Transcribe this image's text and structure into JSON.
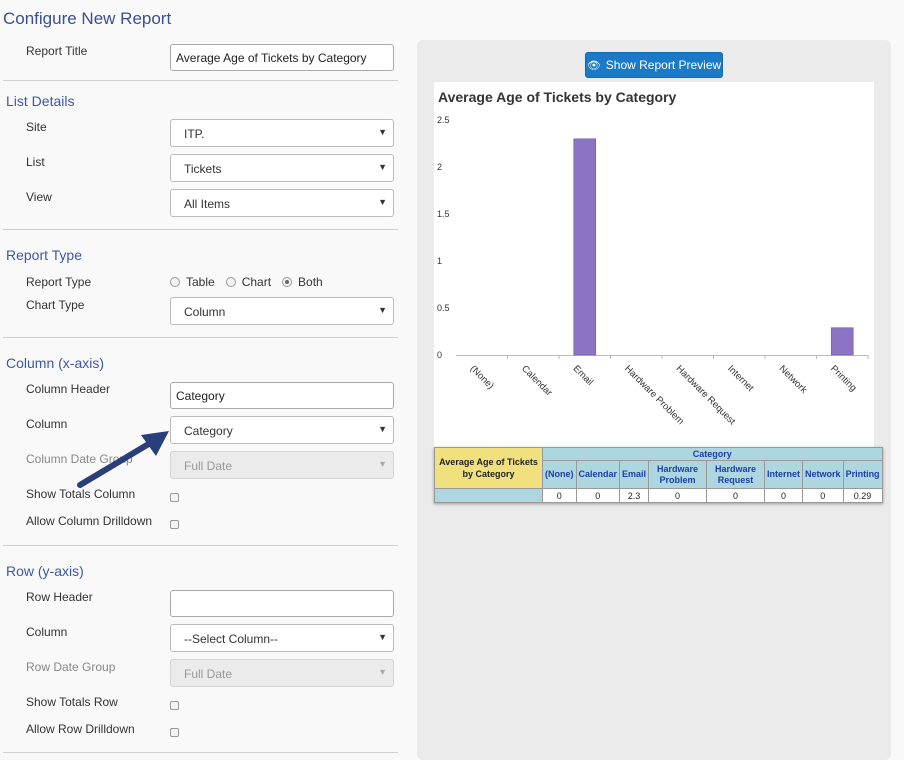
{
  "page": {
    "title": "Configure New Report"
  },
  "report_title": {
    "label": "Report Title",
    "value": "Average Age of Tickets by Category"
  },
  "list_details": {
    "title": "List Details",
    "site": {
      "label": "Site",
      "value": "ITP."
    },
    "list": {
      "label": "List",
      "value": "Tickets"
    },
    "view": {
      "label": "View",
      "value": "All Items"
    }
  },
  "report_type": {
    "title": "Report Type",
    "type_label": "Report Type",
    "options": [
      "Table",
      "Chart",
      "Both"
    ],
    "selected": "Both",
    "chart_type": {
      "label": "Chart Type",
      "value": "Column"
    }
  },
  "column_axis": {
    "title": "Column (x-axis)",
    "header": {
      "label": "Column Header",
      "value": "Category"
    },
    "column": {
      "label": "Column",
      "value": "Category"
    },
    "date_group": {
      "label": "Column Date Group",
      "value": "Full Date"
    },
    "show_totals_label": "Show Totals Column",
    "drilldown_label": "Allow Column Drilldown"
  },
  "row_axis": {
    "title": "Row (y-axis)",
    "header": {
      "label": "Row Header",
      "value": ""
    },
    "column": {
      "label": "Column",
      "value": "--Select Column--"
    },
    "date_group": {
      "label": "Row Date Group",
      "value": "Full Date"
    },
    "show_totals_label": "Show Totals Row",
    "drilldown_label": "Allow Row Drilldown"
  },
  "preview": {
    "button_label": "Show Report Preview",
    "button_icon": "eye-icon"
  },
  "chart_data": {
    "type": "bar",
    "title": "Average Age of Tickets by Category",
    "categories": [
      "(None)",
      "Calendar",
      "Email",
      "Hardware Problem",
      "Hardware Request",
      "Internet",
      "Network",
      "Printing"
    ],
    "values": [
      0,
      0,
      2.3,
      0,
      0,
      0,
      0,
      0.29
    ],
    "ylim": [
      0,
      2.5
    ],
    "yticks": [
      "0",
      "0.5",
      "1",
      "1.5",
      "2",
      "2.5"
    ],
    "bar_color": "#8b74c3",
    "grid": false
  },
  "table": {
    "corner_label": "Average Age of Tickets by Category",
    "category_header": "Category",
    "columns": [
      "(None)",
      "Calendar",
      "Email",
      "Hardware Problem",
      "Hardware Request",
      "Internet",
      "Network",
      "Printing"
    ],
    "values": [
      "0",
      "0",
      "2.3",
      "0",
      "0",
      "0",
      "0",
      "0.29"
    ]
  }
}
